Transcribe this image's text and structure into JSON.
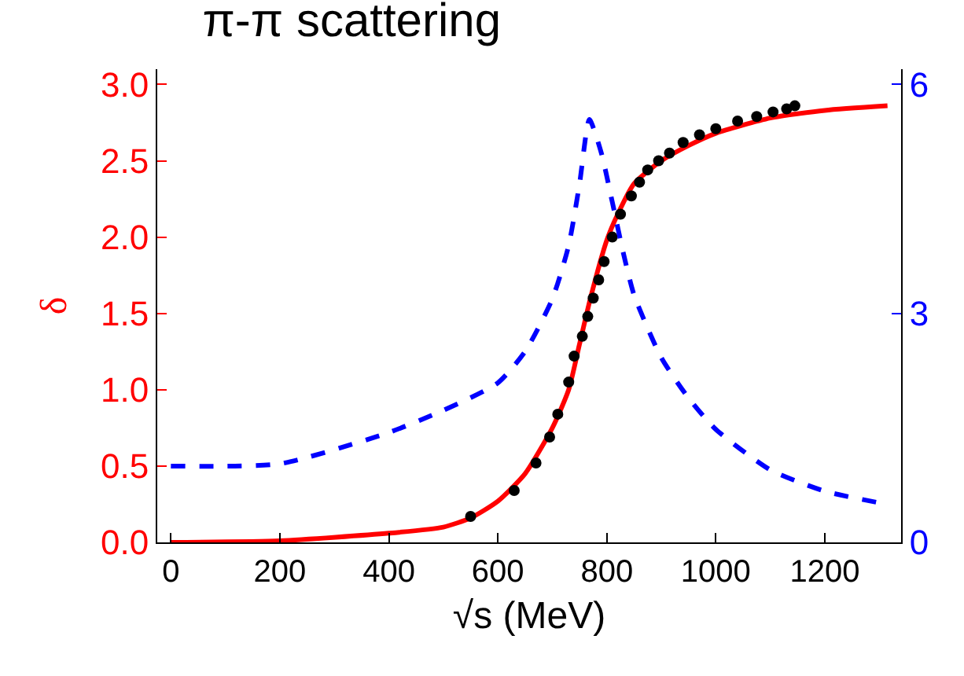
{
  "chart_data": {
    "type": "line",
    "title": "π-π scattering",
    "xlabel": "√s (MeV)",
    "ylabel": "δ",
    "xlim": [
      -25,
      1340
    ],
    "xticks": [
      0,
      200,
      400,
      600,
      800,
      1000,
      1200
    ],
    "ylim": [
      0,
      3.1
    ],
    "yticks": [
      {
        "value": 0,
        "label": "0.0"
      },
      {
        "value": 0.5,
        "label": "0.5"
      },
      {
        "value": 1,
        "label": "1.0"
      },
      {
        "value": 1.5,
        "label": "1.5"
      },
      {
        "value": 2,
        "label": "2.0"
      },
      {
        "value": 2.5,
        "label": "2.5"
      },
      {
        "value": 3,
        "label": "3.0"
      }
    ],
    "y2lim": [
      0,
      6.2
    ],
    "y2ticks": [
      0,
      3,
      6
    ],
    "grid": false,
    "series": [
      {
        "color": "#ff0000",
        "line_style": "solid",
        "x": [
          0,
          200,
          400,
          500,
          550,
          600,
          650,
          700,
          730,
          750,
          770,
          800,
          820,
          850,
          900,
          950,
          1000,
          1100,
          1200,
          1315
        ],
        "values": [
          0,
          0.01,
          0.06,
          0.1,
          0.16,
          0.27,
          0.45,
          0.75,
          1.0,
          1.3,
          1.6,
          1.98,
          2.15,
          2.35,
          2.5,
          2.6,
          2.68,
          2.78,
          2.83,
          2.86
        ]
      },
      {
        "type": "scatter",
        "color": "#000000",
        "marker": "circle",
        "x": [
          550,
          630,
          670,
          695,
          710,
          730,
          740,
          755,
          765,
          775,
          785,
          795,
          810,
          825,
          845,
          860,
          875,
          895,
          915,
          940,
          970,
          1000,
          1040,
          1075,
          1105,
          1130,
          1145
        ],
        "values": [
          0.17,
          0.34,
          0.52,
          0.69,
          0.84,
          1.05,
          1.22,
          1.35,
          1.48,
          1.6,
          1.72,
          1.84,
          2.0,
          2.15,
          2.27,
          2.36,
          2.44,
          2.5,
          2.55,
          2.62,
          2.67,
          2.71,
          2.76,
          2.79,
          2.82,
          2.84,
          2.86
        ]
      },
      {
        "axis": "y2",
        "color": "#0000ff",
        "line_style": "dashed",
        "x": [
          0,
          200,
          400,
          500,
          600,
          650,
          700,
          730,
          750,
          768,
          790,
          810,
          830,
          850,
          900,
          950,
          1000,
          1100,
          1200,
          1299
        ],
        "values": [
          1.0,
          1.03,
          1.44,
          1.73,
          2.09,
          2.5,
          3.19,
          3.89,
          4.7,
          5.54,
          5.1,
          4.46,
          3.8,
          3.24,
          2.42,
          1.89,
          1.48,
          0.95,
          0.67,
          0.52
        ]
      }
    ]
  }
}
